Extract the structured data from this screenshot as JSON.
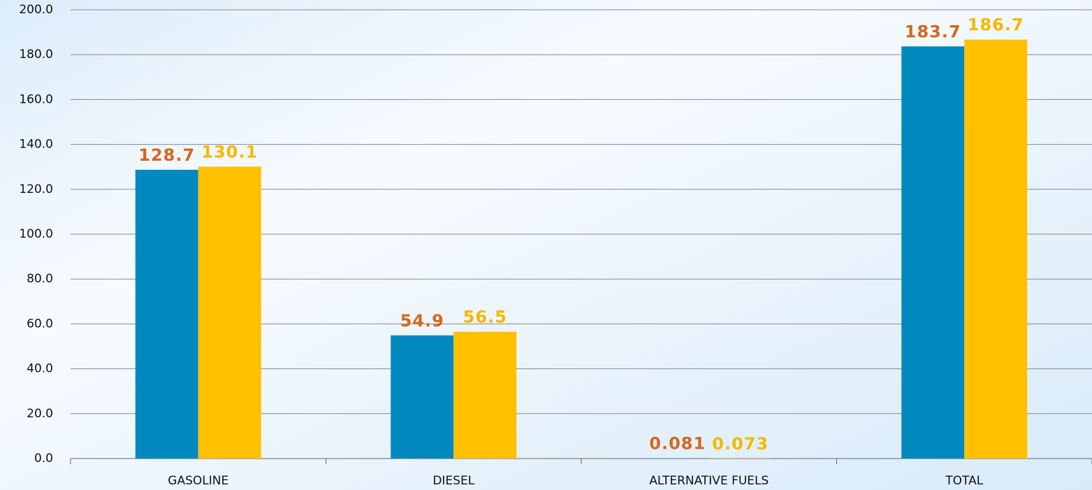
{
  "chart_data": {
    "type": "bar",
    "categories": [
      "GASOLINE",
      "DIESEL",
      "ALTERNATIVE FUELS",
      "TOTAL"
    ],
    "series": [
      {
        "color": "#0089bf",
        "label_color": "#d2691e",
        "values": [
          128.7,
          54.9,
          0.081,
          183.7
        ]
      },
      {
        "color": "#ffc000",
        "label_color": "#f5b800",
        "values": [
          130.1,
          56.5,
          0.073,
          186.7
        ]
      }
    ],
    "ylim": [
      0,
      200
    ],
    "yticks": [
      {
        "value": 0,
        "label": "0.0"
      },
      {
        "value": 20,
        "label": "20.0"
      },
      {
        "value": 40,
        "label": "40.0"
      },
      {
        "value": 60,
        "label": "60.0"
      },
      {
        "value": 80,
        "label": "80.0"
      },
      {
        "value": 100,
        "label": "100.0"
      },
      {
        "value": 120,
        "label": "120.0"
      },
      {
        "value": 140,
        "label": "140.0"
      },
      {
        "value": 160,
        "label": "160.0"
      },
      {
        "value": 180,
        "label": "180.0"
      },
      {
        "value": 200,
        "label": "200.0"
      }
    ],
    "grid": true
  }
}
